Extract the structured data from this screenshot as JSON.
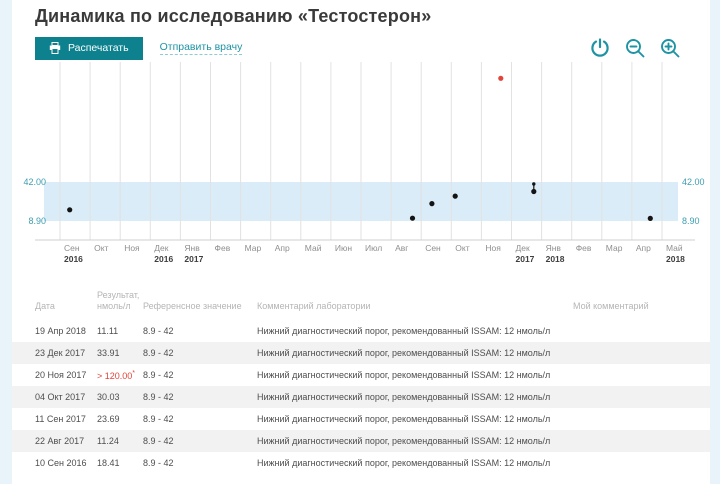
{
  "page": {
    "title": "Динамика по исследованию «Тестостерон»"
  },
  "toolbar": {
    "print_label": "Распечатать",
    "send_label": "Отправить врачу",
    "icons": [
      "power-icon",
      "zoom-out-icon",
      "zoom-in-icon"
    ]
  },
  "colors": {
    "accent": "#0d818e",
    "teal": "#1d93a4",
    "alert": "#e0453a",
    "band": "#daecf8",
    "axis_label": "#3d9db0",
    "grid": "#e2e2e2",
    "point": "#141414"
  },
  "chart_data": {
    "type": "scatter",
    "title": "Динамика по исследованию «Тестостерон»",
    "ylabel": "нмоль/л",
    "reference_range": {
      "low": 8.9,
      "high": 42
    },
    "y_axis_labels": [
      "42.00",
      "8.90"
    ],
    "grid": true,
    "months": [
      {
        "label": "Сен",
        "year": "2016"
      },
      {
        "label": "Окт"
      },
      {
        "label": "Ноя"
      },
      {
        "label": "Дек",
        "year": "2016"
      },
      {
        "label": "Янв",
        "year": "2017"
      },
      {
        "label": "Фев"
      },
      {
        "label": "Мар"
      },
      {
        "label": "Апр"
      },
      {
        "label": "Май"
      },
      {
        "label": "Июн"
      },
      {
        "label": "Июл"
      },
      {
        "label": "Авг"
      },
      {
        "label": "Сен"
      },
      {
        "label": "Окт"
      },
      {
        "label": "Ноя"
      },
      {
        "label": "Дек",
        "year": "2017"
      },
      {
        "label": "Янв",
        "year": "2018"
      },
      {
        "label": "Фев"
      },
      {
        "label": "Мар"
      },
      {
        "label": "Апр"
      },
      {
        "label": "Май",
        "year": "2018"
      }
    ],
    "points": [
      {
        "date": "10 Сен 2016",
        "value": 18.41,
        "month_index": 0,
        "day": 10
      },
      {
        "date": "22 Авг 2017",
        "value": 11.24,
        "month_index": 11,
        "day": 22
      },
      {
        "date": "11 Сен 2017",
        "value": 23.69,
        "month_index": 12,
        "day": 11
      },
      {
        "date": "04 Окт 2017",
        "value": 30.03,
        "month_index": 13,
        "day": 4
      },
      {
        "date": "20 Ноя 2017",
        "value_label": "> 120.00",
        "plot_value": 130,
        "month_index": 14,
        "day": 20,
        "out_of_range": true
      },
      {
        "date": "23 Дек 2017",
        "value": 33.91,
        "month_index": 15,
        "day": 23,
        "marker": "double"
      },
      {
        "date": "19 Апр 2018",
        "value": 11.11,
        "month_index": 19,
        "day": 19
      }
    ]
  },
  "table": {
    "columns": [
      "Дата",
      "Результат,\nнмоль/л",
      "Референсное значение",
      "Комментарий лаборатории",
      "Мой комментарий"
    ],
    "rows": [
      {
        "date": "19 Апр 2018",
        "result": "11.11",
        "ref": "8.9 - 42",
        "comment": "Нижний диагностический порог, рекомендованный ISSAM: 12 нмоль/л",
        "my_comment": ""
      },
      {
        "date": "23 Дек 2017",
        "result": "33.91",
        "ref": "8.9 - 42",
        "comment": "Нижний диагностический порог, рекомендованный ISSAM: 12 нмоль/л",
        "my_comment": ""
      },
      {
        "date": "20 Ноя 2017",
        "result": "> 120.00",
        "result_note": "*",
        "flag": "high",
        "ref": "8.9 - 42",
        "comment": "Нижний диагностический порог, рекомендованный ISSAM: 12 нмоль/л",
        "my_comment": ""
      },
      {
        "date": "04 Окт 2017",
        "result": "30.03",
        "ref": "8.9 - 42",
        "comment": "Нижний диагностический порог, рекомендованный ISSAM: 12 нмоль/л",
        "my_comment": ""
      },
      {
        "date": "11 Сен 2017",
        "result": "23.69",
        "ref": "8.9 - 42",
        "comment": "Нижний диагностический порог, рекомендованный ISSAM: 12 нмоль/л",
        "my_comment": ""
      },
      {
        "date": "22 Авг 2017",
        "result": "11.24",
        "ref": "8.9 - 42",
        "comment": "Нижний диагностический порог, рекомендованный ISSAM: 12 нмоль/л",
        "my_comment": ""
      },
      {
        "date": "10 Сен 2016",
        "result": "18.41",
        "ref": "8.9 - 42",
        "comment": "Нижний диагностический порог, рекомендованный ISSAM: 12 нмоль/л",
        "my_comment": ""
      }
    ]
  }
}
